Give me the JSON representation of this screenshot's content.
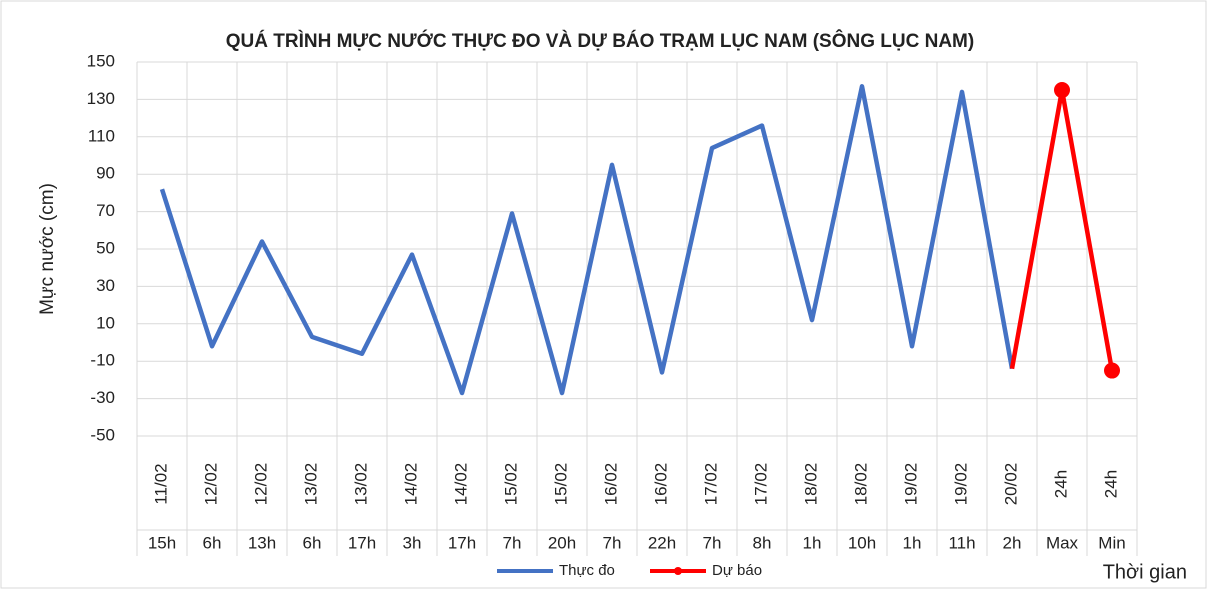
{
  "chart_data": {
    "type": "line",
    "title": "QUÁ TRÌNH MỰC NƯỚC THỰC ĐO VÀ DỰ BÁO TRẠM LỤC NAM (SÔNG LỤC NAM)",
    "y_label": "Mực nước (cm)",
    "x_label": "Thời gian",
    "category_dates": [
      "11/02",
      "12/02",
      "12/02",
      "13/02",
      "13/02",
      "14/02",
      "14/02",
      "15/02",
      "15/02",
      "16/02",
      "16/02",
      "17/02",
      "17/02",
      "18/02",
      "18/02",
      "19/02",
      "19/02",
      "20/02",
      "24h",
      "24h"
    ],
    "categories": [
      "15h",
      "6h",
      "13h",
      "6h",
      "17h",
      "3h",
      "17h",
      "7h",
      "20h",
      "7h",
      "22h",
      "7h",
      "8h",
      "1h",
      "10h",
      "1h",
      "11h",
      "2h",
      "Max",
      "Min"
    ],
    "series": [
      {
        "name": "Thực đo",
        "color": "#4472c4",
        "values": [
          82,
          -2,
          54,
          3,
          -6,
          47,
          -27,
          69,
          -27,
          95,
          -16,
          104,
          116,
          12,
          137,
          -2,
          134,
          -14,
          null,
          null
        ]
      },
      {
        "name": "Dự báo",
        "color": "#ff0000",
        "values": [
          null,
          null,
          null,
          null,
          null,
          null,
          null,
          null,
          null,
          null,
          null,
          null,
          null,
          null,
          null,
          null,
          null,
          -14,
          135,
          -15
        ]
      }
    ],
    "ylim": [
      -50,
      150
    ],
    "yticks": [
      -50,
      -30,
      -10,
      10,
      30,
      50,
      70,
      90,
      110,
      130,
      150
    ],
    "grid": true,
    "legend": "bottom"
  }
}
